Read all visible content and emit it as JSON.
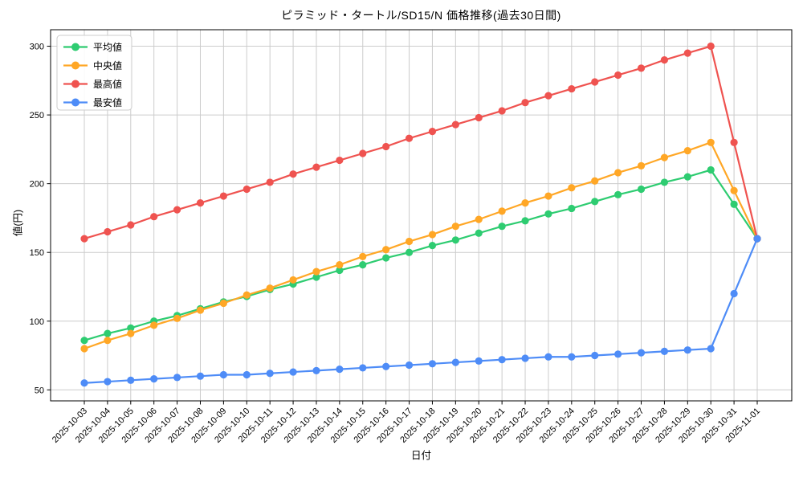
{
  "figure": {
    "title": "ピラミッド・タートル/SD15/N 価格推移(過去30日間)",
    "xlabel": "日付",
    "ylabel": "値(円)"
  },
  "chart_data": {
    "type": "line",
    "title": "ピラミッド・タートル/SD15/N 価格推移(過去30日間)",
    "xlabel": "日付",
    "ylabel": "値(円)",
    "x": [
      "2025-10-03",
      "2025-10-04",
      "2025-10-05",
      "2025-10-06",
      "2025-10-07",
      "2025-10-08",
      "2025-10-09",
      "2025-10-10",
      "2025-10-11",
      "2025-10-12",
      "2025-10-13",
      "2025-10-14",
      "2025-10-15",
      "2025-10-16",
      "2025-10-17",
      "2025-10-18",
      "2025-10-19",
      "2025-10-20",
      "2025-10-21",
      "2025-10-22",
      "2025-10-23",
      "2025-10-24",
      "2025-10-25",
      "2025-10-26",
      "2025-10-27",
      "2025-10-28",
      "2025-10-29",
      "2025-10-30",
      "2025-10-31",
      "2025-11-01"
    ],
    "yticks": [
      50,
      100,
      150,
      200,
      250,
      300
    ],
    "ylim": [
      42,
      312
    ],
    "grid": true,
    "grid_color": "#cccccc",
    "legend_position": "upper left",
    "series": [
      {
        "name": "平均値",
        "id": "average",
        "color": "#2ECC71",
        "values": [
          86,
          91,
          95,
          100,
          104,
          109,
          114,
          118,
          123,
          127,
          132,
          137,
          141,
          146,
          150,
          155,
          159,
          164,
          169,
          173,
          178,
          182,
          187,
          192,
          196,
          201,
          205,
          210,
          185,
          160
        ]
      },
      {
        "name": "中央値",
        "id": "median",
        "color": "#FFA726",
        "values": [
          80,
          86,
          91,
          97,
          102,
          108,
          113,
          119,
          124,
          130,
          136,
          141,
          147,
          152,
          158,
          163,
          169,
          174,
          180,
          186,
          191,
          197,
          202,
          208,
          213,
          219,
          224,
          230,
          195,
          160
        ]
      },
      {
        "name": "最高値",
        "id": "highest",
        "color": "#EF5350",
        "values": [
          160,
          165,
          170,
          176,
          181,
          186,
          191,
          196,
          201,
          207,
          212,
          217,
          222,
          227,
          233,
          238,
          243,
          248,
          253,
          259,
          264,
          269,
          274,
          279,
          284,
          290,
          295,
          300,
          230,
          160
        ]
      },
      {
        "name": "最安値",
        "id": "lowest",
        "color": "#4E8CF7",
        "values": [
          55,
          56,
          57,
          58,
          59,
          60,
          61,
          61,
          62,
          63,
          64,
          65,
          66,
          67,
          68,
          69,
          70,
          71,
          72,
          73,
          74,
          74,
          75,
          76,
          77,
          78,
          79,
          80,
          120,
          160
        ]
      }
    ]
  }
}
